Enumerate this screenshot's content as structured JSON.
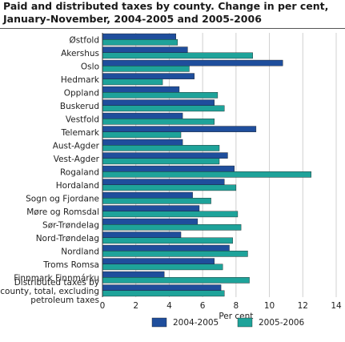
{
  "chart_data": {
    "type": "bar",
    "orientation": "horizontal",
    "title": "Paid and distributed taxes by county. Change in per cent, January-November, 2004-2005 and 2005-2006",
    "xlabel": "Per cent",
    "ylabel": "",
    "xlim": [
      0,
      14
    ],
    "xticks": [
      0,
      2,
      4,
      6,
      8,
      10,
      12,
      14
    ],
    "grid": true,
    "legend_position": "bottom",
    "categories": [
      "Østfold",
      "Akershus",
      "Oslo",
      "Hedmark",
      "Oppland",
      "Buskerud",
      "Vestfold",
      "Telemark",
      "Aust-Agder",
      "Vest-Agder",
      "Rogaland",
      "Hordaland",
      "Sogn og Fjordane",
      "Møre og Romsdal",
      "Sør-Trøndelag",
      "Nord-Trøndelag",
      "Nordland",
      "Troms Romsa",
      "Finnmark Finnmárku",
      "Distributed taxes by county, total, excluding petroleum taxes"
    ],
    "category_lines": [
      [
        "Østfold"
      ],
      [
        "Akershus"
      ],
      [
        "Oslo"
      ],
      [
        "Hedmark"
      ],
      [
        "Oppland"
      ],
      [
        "Buskerud"
      ],
      [
        "Vestfold"
      ],
      [
        "Telemark"
      ],
      [
        "Aust-Agder"
      ],
      [
        "Vest-Agder"
      ],
      [
        "Rogaland"
      ],
      [
        "Hordaland"
      ],
      [
        "Sogn og Fjordane"
      ],
      [
        "Møre og Romsdal"
      ],
      [
        "Sør-Trøndelag"
      ],
      [
        "Nord-Trøndelag"
      ],
      [
        "Nordland"
      ],
      [
        "Troms Romsa"
      ],
      [
        "Finnmark Finnmárku"
      ],
      [
        "Distributed taxes by",
        "county, total, excluding",
        "petroleum taxes"
      ]
    ],
    "series": [
      {
        "name": "2004-2005",
        "color": "#1f4e9c",
        "values": [
          4.4,
          5.1,
          10.8,
          5.5,
          4.6,
          6.7,
          4.8,
          9.2,
          4.8,
          7.5,
          7.9,
          7.3,
          5.4,
          5.8,
          5.7,
          4.7,
          7.6,
          6.7,
          3.7,
          7.1
        ]
      },
      {
        "name": "2005-2006",
        "color": "#1ea39a",
        "values": [
          4.5,
          9.0,
          5.2,
          3.6,
          6.9,
          7.3,
          6.7,
          4.7,
          7.0,
          7.0,
          12.5,
          8.0,
          6.5,
          8.1,
          8.3,
          7.8,
          8.7,
          7.2,
          8.8,
          7.3
        ]
      }
    ]
  }
}
